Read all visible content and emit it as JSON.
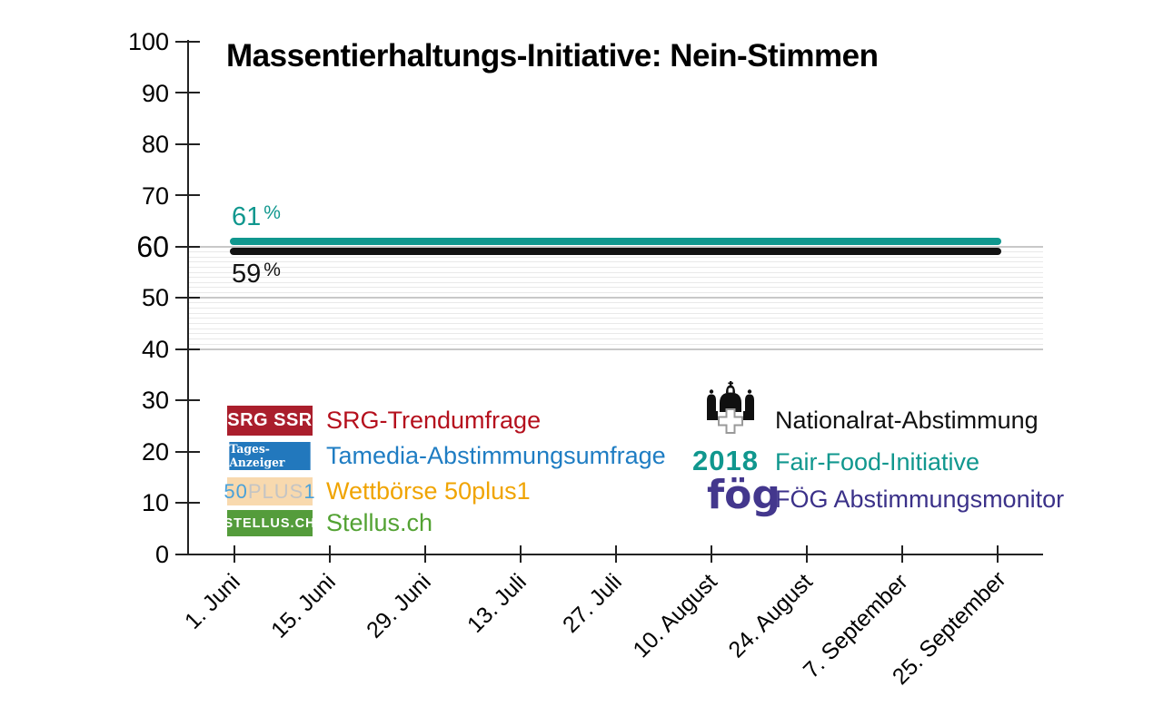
{
  "chart_data": {
    "type": "line",
    "title": "Massentierhaltungs-Initiative: Nein-Stimmen",
    "ylim": [
      0,
      100
    ],
    "y_ticks": [
      0,
      10,
      20,
      30,
      40,
      50,
      60,
      70,
      80,
      90,
      100
    ],
    "y_tick_emphasized": 60,
    "grid": {
      "striped_band_from": 40,
      "striped_band_to": 60,
      "step": 1,
      "minor_color": "#e9e9e9",
      "major_color": "#c8c8c8"
    },
    "x_tick_labels": [
      "1. Juni",
      "15. Juni",
      "29. Juni",
      "13. Juli",
      "27. Juli",
      "10. August",
      "24. August",
      "7. September",
      "25. September"
    ],
    "x_range": [
      "1. Juni",
      "25. September"
    ],
    "series": [
      {
        "name": "Fair-Food-Initiative 2018 (Nein-Stimmen)",
        "value": 61,
        "display_value": "61",
        "unit": "%",
        "color": "#10978e",
        "label_position": "above"
      },
      {
        "name": "Nationalrat-Abstimmung (Nein-Stimmen)",
        "value": 59,
        "display_value": "59",
        "unit": "%",
        "color": "#121212",
        "label_position": "below"
      }
    ],
    "legend_sources": [
      {
        "badge_text": "SRG SSR",
        "badge_bg": "#aa1e2c",
        "badge_color": "#ffffff",
        "label": "SRG-Trendumfrage",
        "label_color": "#b5101d"
      },
      {
        "badge_text": "Tages-Anzeiger",
        "badge_bg": "#2278bd",
        "badge_color": "#ffffff",
        "label": "Tamedia-Abstimmungsumfrage",
        "label_color": "#1f7dc3"
      },
      {
        "badge_bg": "#f8d9ae",
        "badge_parts": [
          {
            "text": "50",
            "color": "#4aa1d9"
          },
          {
            "text": "PLUS",
            "color": "#c4c4c4"
          },
          {
            "text": "1",
            "color": "#4aa1d9"
          }
        ],
        "label": "Wettbörse 50plus1",
        "label_color": "#f0a402"
      },
      {
        "badge_text": "STELLUS.CH",
        "badge_bg": "#549c3b",
        "badge_color": "#ffffff",
        "label": "Stellus.ch",
        "label_color": "#53a233"
      }
    ],
    "legend_outcomes": [
      {
        "icon": "parliament-icon",
        "label": "Nationalrat-Abstimmung",
        "label_color": "#111111"
      },
      {
        "icon": "year-2018-logo",
        "icon_text": "2018",
        "icon_color": "#10978e",
        "label": "Fair-Food-Initiative",
        "label_color": "#10978e"
      },
      {
        "icon": "foeg-logo",
        "icon_text": "fög",
        "icon_color": "#43378d",
        "label": "FÖG Abstimmungsmonitor",
        "label_color": "#3b3189"
      }
    ]
  }
}
